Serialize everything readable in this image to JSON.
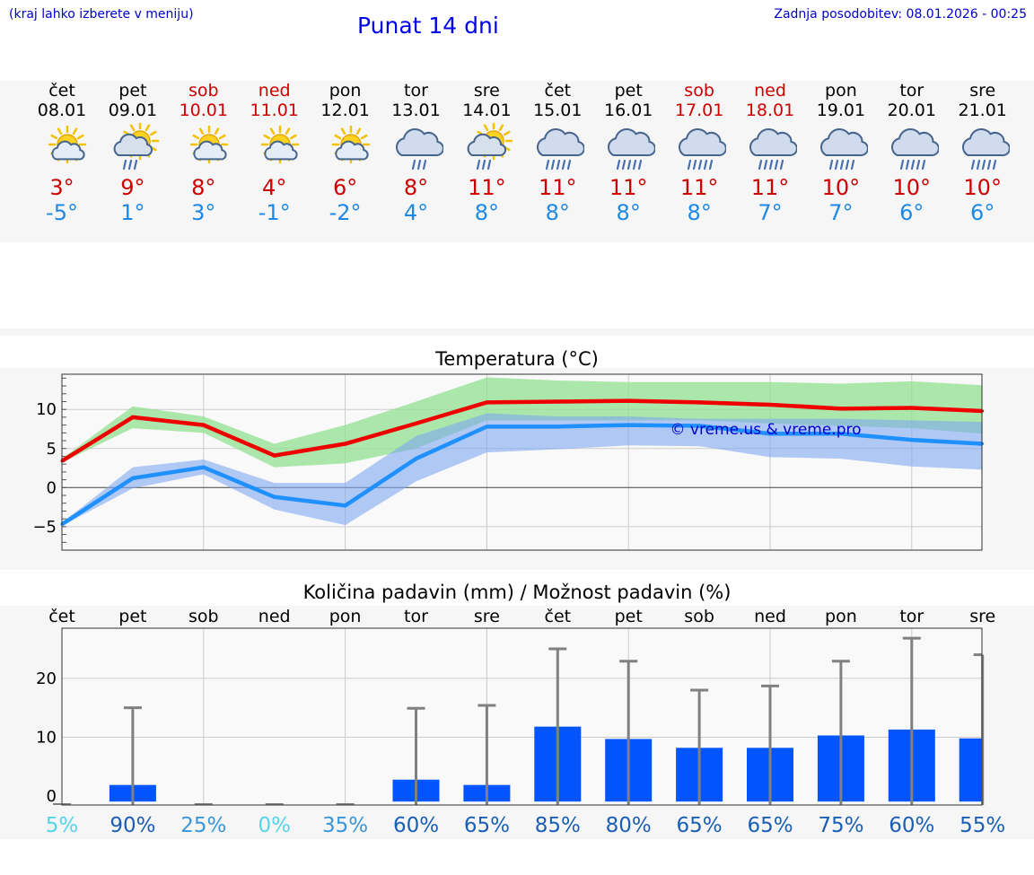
{
  "header": {
    "hint": "(kraj lahko izberete v meniju)",
    "title": "Punat 14 dni",
    "updated": "Zadnja posodobitev: 08.01.2026 - 00:25"
  },
  "days": [
    {
      "name": "čet",
      "date": "08.01",
      "weekend": false,
      "icon": "sun-cloud-icon",
      "max": "3°",
      "min": "-5°"
    },
    {
      "name": "pet",
      "date": "09.01",
      "weekend": false,
      "icon": "sun-cloud-rain-icon",
      "max": "9°",
      "min": "1°"
    },
    {
      "name": "sob",
      "date": "10.01",
      "weekend": true,
      "icon": "sun-cloud-icon",
      "max": "8°",
      "min": "3°"
    },
    {
      "name": "ned",
      "date": "11.01",
      "weekend": true,
      "icon": "sun-cloud-icon",
      "max": "4°",
      "min": "-1°"
    },
    {
      "name": "pon",
      "date": "12.01",
      "weekend": false,
      "icon": "sun-cloud-icon",
      "max": "6°",
      "min": "-2°"
    },
    {
      "name": "tor",
      "date": "13.01",
      "weekend": false,
      "icon": "cloud-rain-icon",
      "max": "8°",
      "min": "4°"
    },
    {
      "name": "sre",
      "date": "14.01",
      "weekend": false,
      "icon": "sun-cloud-rain-icon",
      "max": "11°",
      "min": "8°"
    },
    {
      "name": "čet",
      "date": "15.01",
      "weekend": false,
      "icon": "cloud-heavy-rain-icon",
      "max": "11°",
      "min": "8°"
    },
    {
      "name": "pet",
      "date": "16.01",
      "weekend": false,
      "icon": "cloud-heavy-rain-icon",
      "max": "11°",
      "min": "8°"
    },
    {
      "name": "sob",
      "date": "17.01",
      "weekend": true,
      "icon": "cloud-heavy-rain-icon",
      "max": "11°",
      "min": "8°"
    },
    {
      "name": "ned",
      "date": "18.01",
      "weekend": true,
      "icon": "cloud-heavy-rain-icon",
      "max": "11°",
      "min": "7°"
    },
    {
      "name": "pon",
      "date": "19.01",
      "weekend": false,
      "icon": "cloud-heavy-rain-icon",
      "max": "10°",
      "min": "7°"
    },
    {
      "name": "tor",
      "date": "20.01",
      "weekend": false,
      "icon": "cloud-heavy-rain-icon",
      "max": "10°",
      "min": "6°"
    },
    {
      "name": "sre",
      "date": "21.01",
      "weekend": false,
      "icon": "cloud-heavy-rain-icon",
      "max": "10°",
      "min": "6°"
    }
  ],
  "colors": {
    "weekday": "#000000",
    "weekend": "#cc0000",
    "max": "#cc0000",
    "min": "#1e88e5",
    "maxLine": "#ee0000",
    "minLine": "#1e90ff",
    "maxBand": "#90e090",
    "minBand": "#7fa6f0",
    "bar": "#0055ff",
    "errbar": "#808080"
  },
  "chart_data": [
    {
      "type": "line",
      "title": "Temperatura (°C)",
      "xlabel": "",
      "ylabel": "",
      "ylim": [
        -8,
        14.5
      ],
      "yticks": [
        -5,
        0,
        5,
        10
      ],
      "ytick_labels": [
        "−5",
        "0",
        "5",
        "10"
      ],
      "watermark": "© vreme.us & vreme.pro",
      "series": [
        {
          "name": "max",
          "values": [
            3.4,
            9.0,
            8.0,
            4.1,
            5.6,
            8.2,
            10.9,
            11.0,
            11.1,
            10.9,
            10.6,
            10.1,
            10.2,
            9.8
          ],
          "band_low": [
            3.2,
            7.6,
            7.0,
            2.6,
            3.1,
            5.0,
            8.6,
            8.6,
            8.6,
            8.6,
            8.2,
            7.9,
            7.6,
            6.9
          ],
          "band_high": [
            3.7,
            10.4,
            9.1,
            5.6,
            8.0,
            11.0,
            14.1,
            13.7,
            13.5,
            13.5,
            13.5,
            13.3,
            13.6,
            13.1
          ]
        },
        {
          "name": "min",
          "values": [
            -4.7,
            1.2,
            2.6,
            -1.2,
            -2.3,
            3.7,
            7.8,
            7.8,
            8.0,
            7.9,
            6.9,
            6.9,
            6.1,
            5.6
          ],
          "band_low": [
            -4.9,
            -0.1,
            1.7,
            -2.8,
            -4.8,
            0.8,
            4.5,
            4.9,
            5.4,
            5.3,
            3.9,
            3.7,
            2.7,
            2.3
          ],
          "band_high": [
            -4.5,
            2.6,
            3.6,
            0.6,
            0.6,
            6.6,
            9.5,
            9.1,
            9.1,
            8.8,
            8.8,
            8.8,
            8.6,
            8.4
          ]
        }
      ]
    },
    {
      "type": "bar",
      "title": "Količina padavin (mm) / Možnost padavin (%)",
      "categories": [
        "čet",
        "pet",
        "sob",
        "ned",
        "pon",
        "tor",
        "sre",
        "čet",
        "pet",
        "sob",
        "ned",
        "pon",
        "tor",
        "sre"
      ],
      "ylim": [
        -1.5,
        28.5
      ],
      "yticks": [
        0,
        10,
        20
      ],
      "values": [
        0,
        1.9,
        0,
        0,
        0,
        2.8,
        1.9,
        11.8,
        9.7,
        8.2,
        8.2,
        10.3,
        11.3,
        9.8
      ],
      "error_high": [
        0,
        15.0,
        0,
        0,
        0,
        14.9,
        15.4,
        25.0,
        22.9,
        18.0,
        18.7,
        22.9,
        26.8,
        24.0
      ],
      "probability": [
        "5%",
        "90%",
        "25%",
        "0%",
        "35%",
        "60%",
        "65%",
        "85%",
        "80%",
        "65%",
        "65%",
        "75%",
        "60%",
        "55%"
      ],
      "probability_colors": [
        "#55d4e8",
        "#1a5fb4",
        "#3a96d8",
        "#55d4e8",
        "#3a96d8",
        "#1a5fb4",
        "#1a5fb4",
        "#1a5fb4",
        "#1a5fb4",
        "#1a5fb4",
        "#1a5fb4",
        "#1a5fb4",
        "#1a5fb4",
        "#1a5fb4"
      ]
    }
  ]
}
